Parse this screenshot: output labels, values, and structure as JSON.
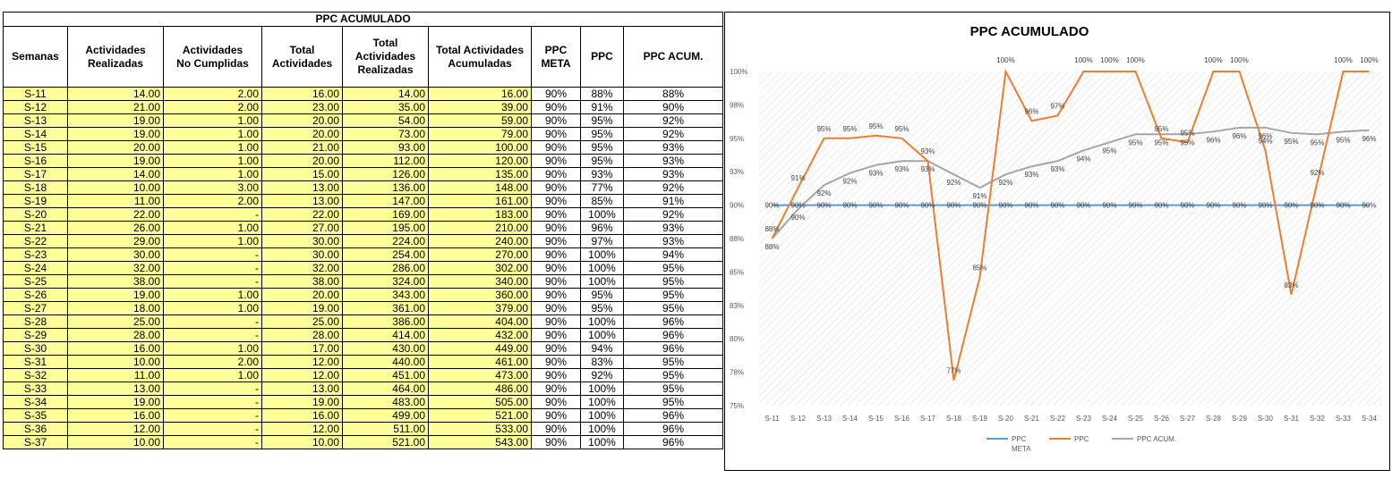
{
  "table": {
    "title": "PPC ACUMULADO",
    "headers": [
      "Semanas",
      "Actividades\nRealizadas",
      "Actividades\nNo Cumplidas",
      "Total\nActividades",
      "Total\nActividades\nRealizadas",
      "Total Actividades\nAcumuladas",
      "PPC\nMETA",
      "PPC",
      "PPC ACUM."
    ],
    "rows": [
      [
        "S-11",
        "14.00",
        "2.00",
        "16.00",
        "14.00",
        "16.00",
        "90%",
        "88%",
        "88%"
      ],
      [
        "S-12",
        "21.00",
        "2.00",
        "23.00",
        "35.00",
        "39.00",
        "90%",
        "91%",
        "90%"
      ],
      [
        "S-13",
        "19.00",
        "1.00",
        "20.00",
        "54.00",
        "59.00",
        "90%",
        "95%",
        "92%"
      ],
      [
        "S-14",
        "19.00",
        "1.00",
        "20.00",
        "73.00",
        "79.00",
        "90%",
        "95%",
        "92%"
      ],
      [
        "S-15",
        "20.00",
        "1.00",
        "21.00",
        "93.00",
        "100.00",
        "90%",
        "95%",
        "93%"
      ],
      [
        "S-16",
        "19.00",
        "1.00",
        "20.00",
        "112.00",
        "120.00",
        "90%",
        "95%",
        "93%"
      ],
      [
        "S-17",
        "14.00",
        "1.00",
        "15.00",
        "126.00",
        "135.00",
        "90%",
        "93%",
        "93%"
      ],
      [
        "S-18",
        "10.00",
        "3.00",
        "13.00",
        "136.00",
        "148.00",
        "90%",
        "77%",
        "92%"
      ],
      [
        "S-19",
        "11.00",
        "2.00",
        "13.00",
        "147.00",
        "161.00",
        "90%",
        "85%",
        "91%"
      ],
      [
        "S-20",
        "22.00",
        "-",
        "22.00",
        "169.00",
        "183.00",
        "90%",
        "100%",
        "92%"
      ],
      [
        "S-21",
        "26.00",
        "1.00",
        "27.00",
        "195.00",
        "210.00",
        "90%",
        "96%",
        "93%"
      ],
      [
        "S-22",
        "29.00",
        "1.00",
        "30.00",
        "224.00",
        "240.00",
        "90%",
        "97%",
        "93%"
      ],
      [
        "S-23",
        "30.00",
        "-",
        "30.00",
        "254.00",
        "270.00",
        "90%",
        "100%",
        "94%"
      ],
      [
        "S-24",
        "32.00",
        "-",
        "32.00",
        "286.00",
        "302.00",
        "90%",
        "100%",
        "95%"
      ],
      [
        "S-25",
        "38.00",
        "-",
        "38.00",
        "324.00",
        "340.00",
        "90%",
        "100%",
        "95%"
      ],
      [
        "S-26",
        "19.00",
        "1.00",
        "20.00",
        "343.00",
        "360.00",
        "90%",
        "95%",
        "95%"
      ],
      [
        "S-27",
        "18.00",
        "1.00",
        "19.00",
        "361.00",
        "379.00",
        "90%",
        "95%",
        "95%"
      ],
      [
        "S-28",
        "25.00",
        "-",
        "25.00",
        "386.00",
        "404.00",
        "90%",
        "100%",
        "96%"
      ],
      [
        "S-29",
        "28.00",
        "-",
        "28.00",
        "414.00",
        "432.00",
        "90%",
        "100%",
        "96%"
      ],
      [
        "S-30",
        "16.00",
        "1.00",
        "17.00",
        "430.00",
        "449.00",
        "90%",
        "94%",
        "96%"
      ],
      [
        "S-31",
        "10.00",
        "2.00",
        "12.00",
        "440.00",
        "461.00",
        "90%",
        "83%",
        "95%"
      ],
      [
        "S-32",
        "11.00",
        "1.00",
        "12.00",
        "451.00",
        "473.00",
        "90%",
        "92%",
        "95%"
      ],
      [
        "S-33",
        "13.00",
        "-",
        "13.00",
        "464.00",
        "486.00",
        "90%",
        "100%",
        "95%"
      ],
      [
        "S-34",
        "19.00",
        "-",
        "19.00",
        "483.00",
        "505.00",
        "90%",
        "100%",
        "95%"
      ],
      [
        "S-35",
        "16.00",
        "-",
        "16.00",
        "499.00",
        "521.00",
        "90%",
        "100%",
        "96%"
      ],
      [
        "S-36",
        "12.00",
        "-",
        "12.00",
        "511.00",
        "533.00",
        "90%",
        "100%",
        "96%"
      ],
      [
        "S-37",
        "10.00",
        "-",
        "10.00",
        "521.00",
        "543.00",
        "90%",
        "100%",
        "96%"
      ]
    ]
  },
  "chart_data": {
    "type": "line",
    "title": "PPC ACUMULADO",
    "categories": [
      "S-11",
      "S-12",
      "S-13",
      "S-14",
      "S-15",
      "S-16",
      "S-17",
      "S-18",
      "S-19",
      "S-20",
      "S-21",
      "S-22",
      "S-23",
      "S-24",
      "S-25",
      "S-26",
      "S-27",
      "S-28",
      "S-29",
      "S-30",
      "S-31",
      "S-32",
      "S-33",
      "S-34"
    ],
    "ylim": [
      75,
      100
    ],
    "yticks": [
      "75%",
      "78%",
      "80%",
      "83%",
      "85%",
      "88%",
      "90%",
      "93%",
      "95%",
      "98%",
      "100%"
    ],
    "grid": "hatched plot background",
    "legend_position": "bottom",
    "series": [
      {
        "name": "PPC\nMETA",
        "color": "#5b9bd5",
        "values": [
          90,
          90,
          90,
          90,
          90,
          90,
          90,
          90,
          90,
          90,
          90,
          90,
          90,
          90,
          90,
          90,
          90,
          90,
          90,
          90,
          90,
          90,
          90,
          90
        ],
        "labels": [
          "90%",
          "90%",
          "90%",
          "90%",
          "90%",
          "90%",
          "90%",
          "90%",
          "90%",
          "90%",
          "90%",
          "90%",
          "90%",
          "90%",
          "90%",
          "90%",
          "90%",
          "90%",
          "90%",
          "90%",
          "90%",
          "90%",
          "90%",
          "90%"
        ]
      },
      {
        "name": "PPC",
        "color": "#ed7d31",
        "values": [
          87.5,
          91.3,
          95.0,
          95.0,
          95.2,
          95.0,
          93.3,
          76.9,
          84.6,
          100,
          96.3,
          96.7,
          100,
          100,
          100,
          95.0,
          94.7,
          100,
          100,
          94.1,
          83.3,
          91.7,
          100,
          100
        ],
        "labels": [
          "88%",
          "91%",
          "95%",
          "95%",
          "95%",
          "95%",
          "93%",
          "77%",
          "85%",
          "100%",
          "96%",
          "97%",
          "100%",
          "100%",
          "100%",
          "95%",
          "95%",
          "100%",
          "100%",
          "94%",
          "83%",
          "92%",
          "100%",
          "100%"
        ]
      },
      {
        "name": "PPC ACUM.",
        "color": "#a5a5a5",
        "values": [
          87.5,
          89.7,
          91.5,
          92.4,
          93.0,
          93.3,
          93.3,
          92.3,
          91.3,
          92.3,
          92.9,
          93.3,
          94.1,
          94.7,
          95.3,
          95.3,
          95.3,
          95.5,
          95.8,
          95.8,
          95.4,
          95.3,
          95.5,
          95.6
        ],
        "labels": [
          "88%",
          "90%",
          "92%",
          "92%",
          "93%",
          "93%",
          "93%",
          "92%",
          "91%",
          "92%",
          "93%",
          "93%",
          "94%",
          "95%",
          "95%",
          "95%",
          "95%",
          "96%",
          "96%",
          "96%",
          "95%",
          "95%",
          "95%",
          "96%"
        ]
      }
    ]
  }
}
